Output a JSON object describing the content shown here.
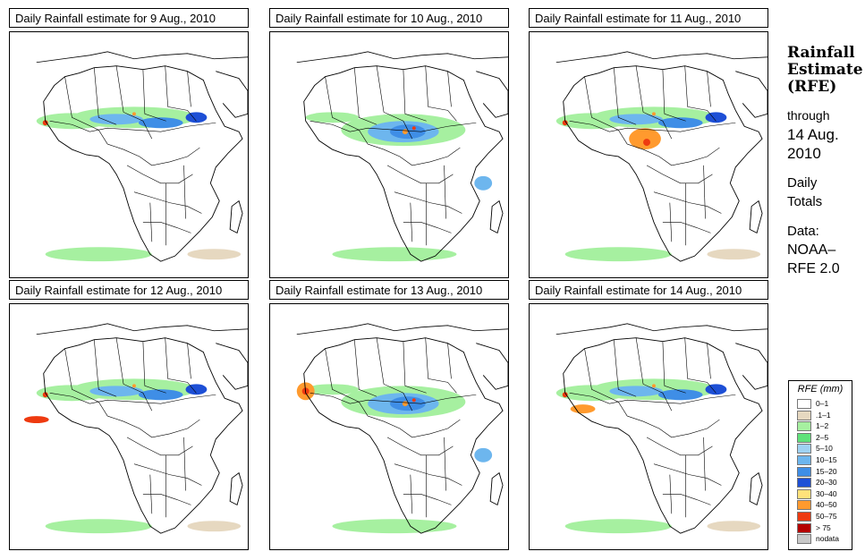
{
  "panels": [
    {
      "title": "Daily Rainfall estimate for  9 Aug., 2010"
    },
    {
      "title": "Daily Rainfall estimate for  10 Aug., 2010"
    },
    {
      "title": "Daily Rainfall estimate for  11 Aug., 2010"
    },
    {
      "title": "Daily Rainfall estimate for  12 Aug., 2010"
    },
    {
      "title": "Daily Rainfall estimate for  13 Aug., 2010"
    },
    {
      "title": "Daily Rainfall estimate for  14 Aug., 2010"
    }
  ],
  "sidebar": {
    "title_line1": "Rainfall",
    "title_line2": "Estimate",
    "title_line3": "(RFE)",
    "through": "through",
    "date_line1": "14 Aug.",
    "date_line2": "2010",
    "daily": "Daily",
    "totals": "Totals",
    "data_label": "Data:",
    "source_line1": "NOAA–",
    "source_line2": "RFE 2.0"
  },
  "legend": {
    "title": "RFE (mm)",
    "items": [
      {
        "label": "0–1",
        "color": "#ffffff"
      },
      {
        "label": ".1–1",
        "color": "#e6d8c0"
      },
      {
        "label": "1–2",
        "color": "#a6f0a0"
      },
      {
        "label": "2–5",
        "color": "#5fe27a"
      },
      {
        "label": "5–10",
        "color": "#9fd2f2"
      },
      {
        "label": "10–15",
        "color": "#6db6ee"
      },
      {
        "label": "15–20",
        "color": "#3f8ee6"
      },
      {
        "label": "20–30",
        "color": "#1d4fd6"
      },
      {
        "label": "30–40",
        "color": "#ffe27a"
      },
      {
        "label": "40–50",
        "color": "#ff9a2e"
      },
      {
        "label": "50–75",
        "color": "#ee3a10"
      },
      {
        "label": "> 75",
        "color": "#b50000"
      },
      {
        "label": "nodata",
        "color": "#c8c8c8"
      }
    ]
  }
}
